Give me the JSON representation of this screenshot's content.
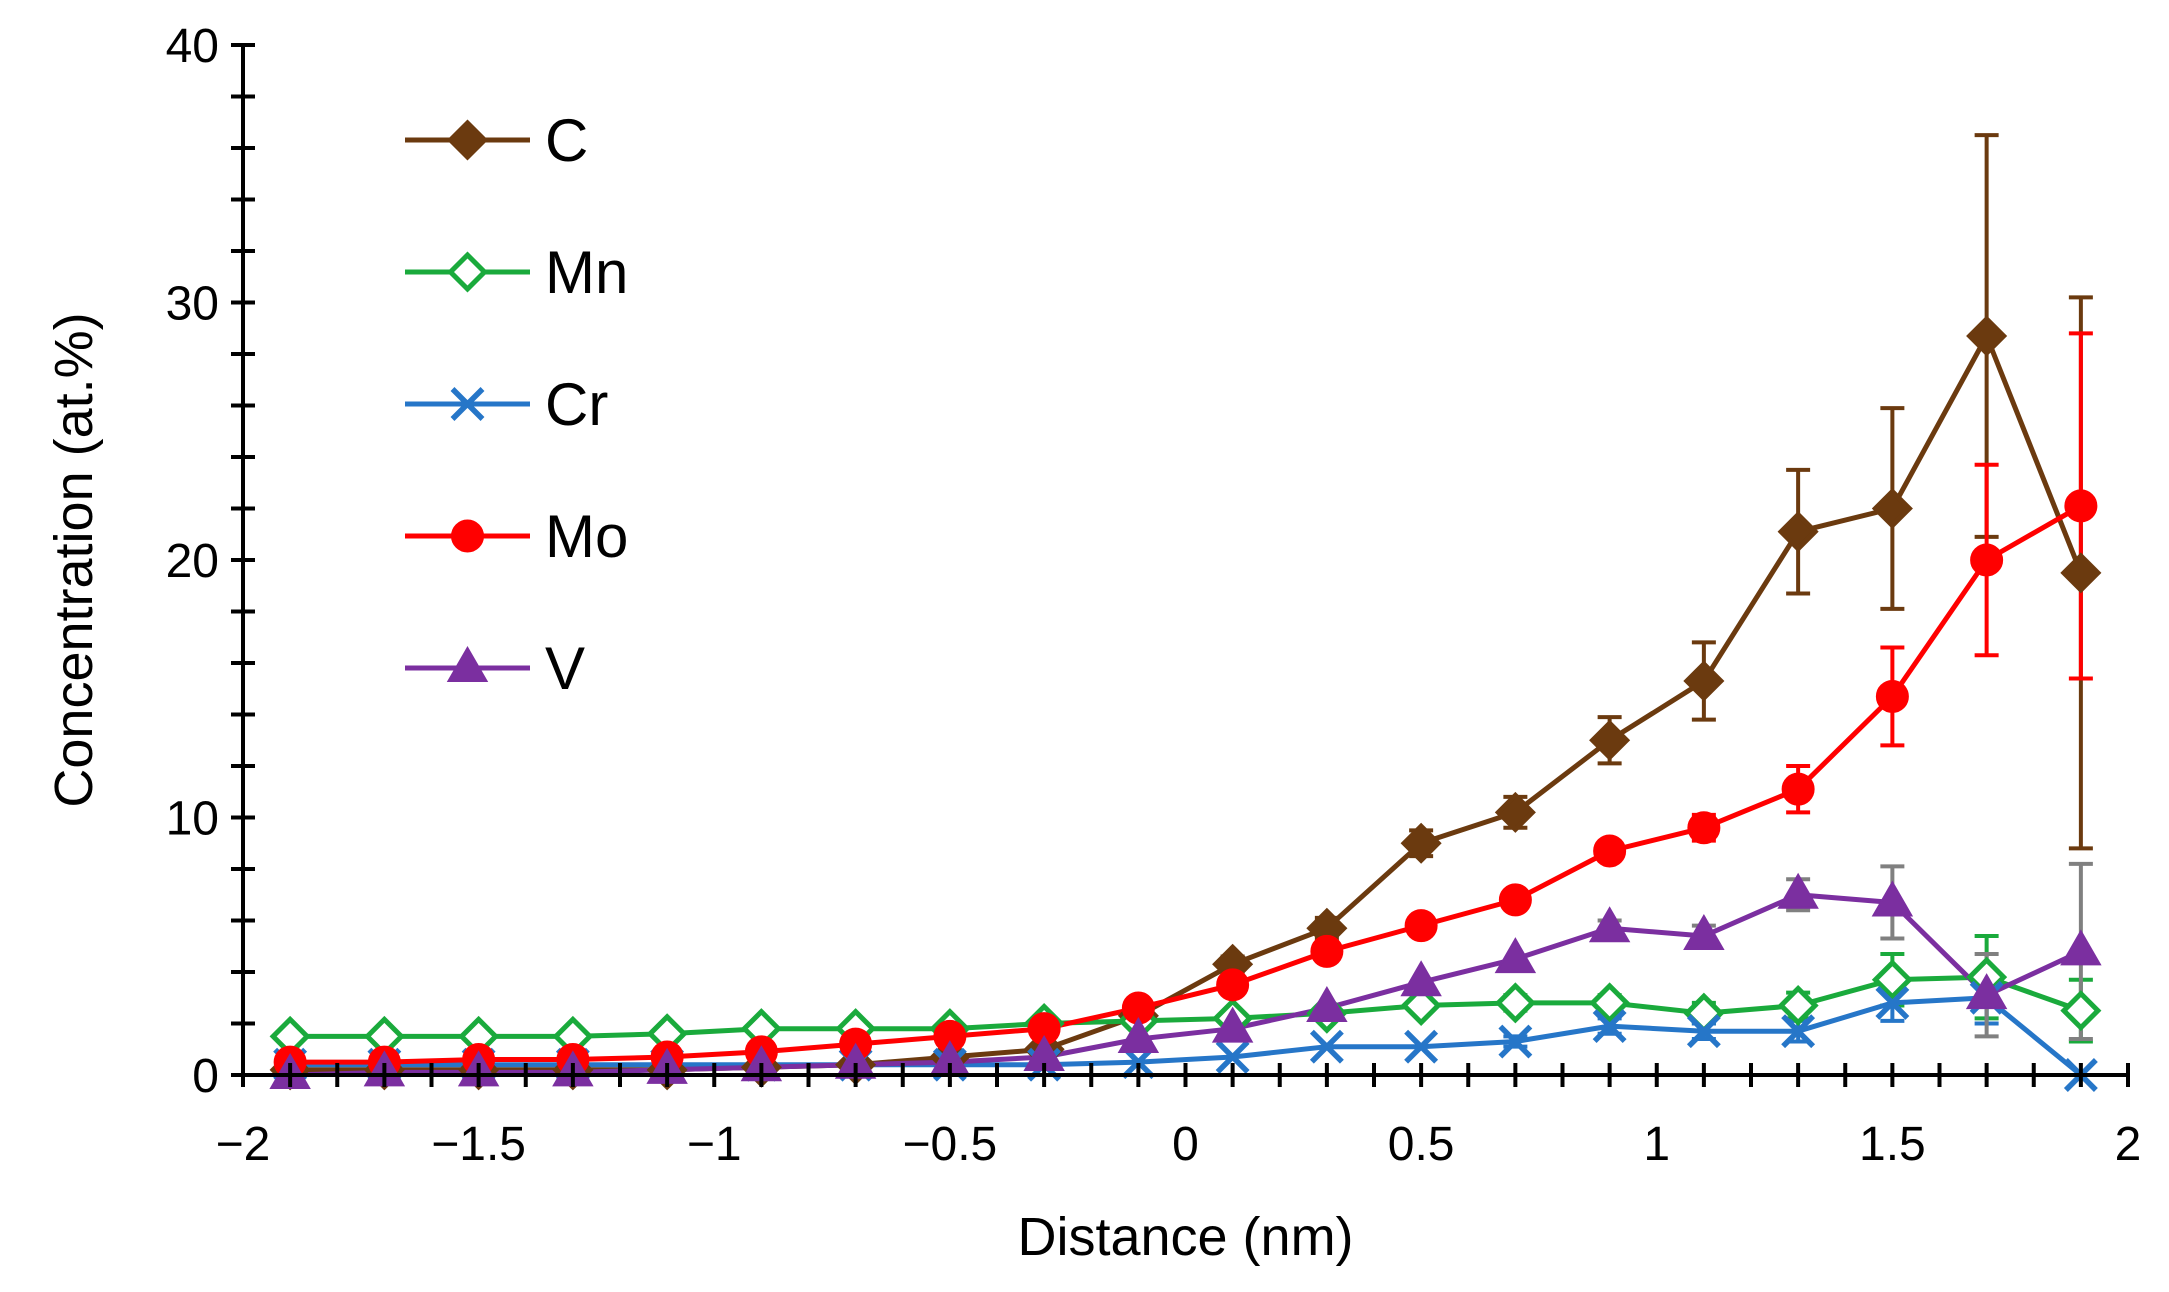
{
  "chart_data": {
    "type": "line",
    "xlabel": "Distance (nm)",
    "ylabel": "Concentration (at.%)",
    "xlim": [
      -2,
      2
    ],
    "ylim": [
      0,
      40
    ],
    "x_ticks": [
      -2,
      -1.5,
      -1,
      -0.5,
      0,
      0.5,
      1,
      1.5,
      2
    ],
    "x_tick_labels": [
      "−2",
      "−1.5",
      "−1",
      "−0.5",
      "0",
      "0.5",
      "1",
      "1.5",
      "2"
    ],
    "y_ticks": [
      0,
      10,
      20,
      30,
      40
    ],
    "y_tick_labels": [
      "0",
      "10",
      "20",
      "30",
      "40"
    ],
    "legend_position": "top-left",
    "grid": false,
    "x": [
      -1.9,
      -1.7,
      -1.5,
      -1.3,
      -1.1,
      -0.9,
      -0.7,
      -0.5,
      -0.3,
      -0.1,
      0.1,
      0.3,
      0.5,
      0.7,
      0.9,
      1.1,
      1.3,
      1.5,
      1.7,
      1.9
    ],
    "series": [
      {
        "name": "C",
        "color": "#6b3a0f",
        "marker": "diamond-filled",
        "values": [
          0.2,
          0.2,
          0.2,
          0.2,
          0.2,
          0.3,
          0.4,
          0.7,
          1.0,
          2.3,
          4.3,
          5.7,
          9.0,
          10.2,
          13.0,
          15.3,
          21.1,
          22.0,
          28.7,
          19.5
        ],
        "errors": [
          0,
          0,
          0,
          0,
          0,
          0,
          0,
          0,
          0,
          0,
          0.3,
          0.4,
          0.5,
          0.6,
          0.9,
          1.5,
          2.4,
          3.9,
          7.8,
          10.7
        ],
        "error_color": "#6b3a0f"
      },
      {
        "name": "Mn",
        "color": "#1aaa3c",
        "marker": "diamond-open",
        "values": [
          1.5,
          1.5,
          1.5,
          1.5,
          1.6,
          1.8,
          1.8,
          1.8,
          2.0,
          2.1,
          2.2,
          2.4,
          2.7,
          2.8,
          2.8,
          2.4,
          2.7,
          3.7,
          3.8,
          2.5
        ],
        "errors": [
          0,
          0,
          0,
          0,
          0,
          0,
          0,
          0,
          0,
          0,
          0,
          0.2,
          0.2,
          0.3,
          0.3,
          0.4,
          0.5,
          1.0,
          1.6,
          1.2
        ],
        "error_color": "#1aaa3c"
      },
      {
        "name": "Cr",
        "color": "#2676c8",
        "marker": "x",
        "values": [
          0.4,
          0.4,
          0.4,
          0.4,
          0.4,
          0.4,
          0.4,
          0.4,
          0.4,
          0.5,
          0.7,
          1.1,
          1.1,
          1.3,
          1.9,
          1.7,
          1.7,
          2.8,
          3.0,
          0.0
        ],
        "errors": [
          0,
          0,
          0,
          0,
          0,
          0,
          0,
          0,
          0,
          0,
          0,
          0,
          0,
          0.2,
          0.3,
          0.3,
          0.4,
          0.7,
          1.0,
          0.0
        ],
        "error_color": "#2676c8"
      },
      {
        "name": "Mo",
        "color": "#ff0000",
        "marker": "circle",
        "values": [
          0.5,
          0.5,
          0.6,
          0.6,
          0.7,
          0.9,
          1.2,
          1.5,
          1.8,
          2.6,
          3.5,
          4.8,
          5.8,
          6.8,
          8.7,
          9.6,
          11.1,
          14.7,
          20.0,
          22.1
        ],
        "errors": [
          0,
          0,
          0,
          0,
          0,
          0,
          0,
          0,
          0,
          0,
          0,
          0,
          0.2,
          0.3,
          0.3,
          0.5,
          0.9,
          1.9,
          3.7,
          6.7
        ],
        "error_color": "#ff0000"
      },
      {
        "name": "V",
        "color": "#7b2fa0",
        "marker": "triangle",
        "values": [
          0.0,
          0.1,
          0.1,
          0.1,
          0.2,
          0.3,
          0.4,
          0.5,
          0.7,
          1.4,
          1.8,
          2.6,
          3.6,
          4.5,
          5.7,
          5.4,
          7.0,
          6.7,
          3.1,
          4.8
        ],
        "errors": [
          0,
          0,
          0,
          0,
          0,
          0,
          0,
          0,
          0,
          0,
          0,
          0,
          0,
          0,
          0.3,
          0.4,
          0.6,
          1.4,
          1.6,
          3.4
        ],
        "error_color": "#808080"
      }
    ]
  }
}
